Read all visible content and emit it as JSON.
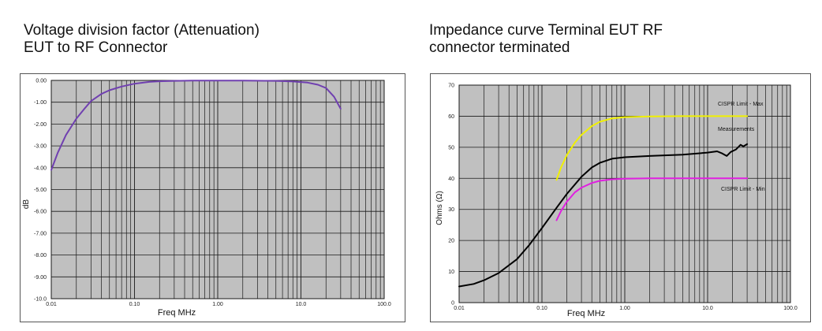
{
  "chart_data": [
    {
      "type": "line",
      "title": [
        "Voltage division factor (Attenuation)",
        "EUT to RF Connector"
      ],
      "xlabel": "Freq MHz",
      "ylabel": "dB",
      "x_scale": "log",
      "xlim": [
        0.01,
        100.0
      ],
      "ylim": [
        -10.0,
        0.0
      ],
      "x_ticks": [
        0.01,
        0.1,
        1.0,
        10.0,
        100.0
      ],
      "x_tick_labels": [
        "0.01",
        "0.10",
        "1.00",
        "10.0",
        "100.0"
      ],
      "y_ticks": [
        0,
        -1,
        -2,
        -3,
        -4,
        -5,
        -6,
        -7,
        -8,
        -9,
        -10
      ],
      "y_tick_labels": [
        "0.00",
        "-1.00",
        "-2.00",
        "-3.00",
        "-4.00",
        "-5.00",
        "-6.00",
        "-7.00",
        "-8.00",
        "-9.00",
        "-10.0"
      ],
      "grid": true,
      "background": "#c0c0c0",
      "series": [
        {
          "color": "#7040b0",
          "points": [
            [
              0.01,
              -4.1
            ],
            [
              0.012,
              -3.3
            ],
            [
              0.015,
              -2.5
            ],
            [
              0.02,
              -1.75
            ],
            [
              0.025,
              -1.3
            ],
            [
              0.03,
              -0.95
            ],
            [
              0.04,
              -0.62
            ],
            [
              0.05,
              -0.45
            ],
            [
              0.07,
              -0.28
            ],
            [
              0.1,
              -0.15
            ],
            [
              0.15,
              -0.07
            ],
            [
              0.2,
              -0.04
            ],
            [
              0.3,
              -0.02
            ],
            [
              0.5,
              -0.01
            ],
            [
              1.0,
              -0.01
            ],
            [
              2.0,
              -0.01
            ],
            [
              5.0,
              -0.02
            ],
            [
              8.0,
              -0.05
            ],
            [
              12.0,
              -0.1
            ],
            [
              16.0,
              -0.2
            ],
            [
              20.0,
              -0.35
            ],
            [
              25.0,
              -0.75
            ],
            [
              30.0,
              -1.3
            ]
          ]
        }
      ]
    },
    {
      "type": "line",
      "title": [
        "Impedance curve Terminal EUT RF",
        "connector terminated"
      ],
      "xlabel": "Freq MHz",
      "ylabel": "Ohms (Ω)",
      "x_scale": "log",
      "xlim": [
        0.01,
        100.0
      ],
      "ylim": [
        0,
        70
      ],
      "x_ticks": [
        0.01,
        0.1,
        1.0,
        10.0,
        100.0
      ],
      "x_tick_labels": [
        "0.01",
        "0.10",
        "1.00",
        "10.0",
        "100.0"
      ],
      "y_ticks": [
        0,
        10,
        20,
        30,
        40,
        50,
        60,
        70
      ],
      "y_tick_labels": [
        "0",
        "10",
        "20",
        "30",
        "40",
        "50",
        "60",
        "70"
      ],
      "grid": true,
      "background": "#c0c0c0",
      "series": [
        {
          "name": "CISPR Limit - Max",
          "color": "#f0f000",
          "points": [
            [
              0.15,
              39.5
            ],
            [
              0.17,
              43.5
            ],
            [
              0.2,
              47.5
            ],
            [
              0.25,
              51.5
            ],
            [
              0.3,
              54.0
            ],
            [
              0.4,
              56.8
            ],
            [
              0.5,
              58.2
            ],
            [
              0.7,
              59.3
            ],
            [
              1.0,
              59.7
            ],
            [
              2.0,
              59.9
            ],
            [
              5.0,
              60.0
            ],
            [
              10.0,
              60.0
            ],
            [
              30.0,
              60.0
            ]
          ]
        },
        {
          "name": "Measurements",
          "color": "#000000",
          "points": [
            [
              0.01,
              5.2
            ],
            [
              0.015,
              6.0
            ],
            [
              0.02,
              7.2
            ],
            [
              0.03,
              9.5
            ],
            [
              0.05,
              14.0
            ],
            [
              0.07,
              18.5
            ],
            [
              0.1,
              24.0
            ],
            [
              0.15,
              30.5
            ],
            [
              0.2,
              35.0
            ],
            [
              0.3,
              40.5
            ],
            [
              0.4,
              43.5
            ],
            [
              0.5,
              45.0
            ],
            [
              0.7,
              46.3
            ],
            [
              1.0,
              46.8
            ],
            [
              2.0,
              47.2
            ],
            [
              5.0,
              47.6
            ],
            [
              10.0,
              48.3
            ],
            [
              13.0,
              48.7
            ],
            [
              15.0,
              48.0
            ],
            [
              17.0,
              47.2
            ],
            [
              19.0,
              48.5
            ],
            [
              22.0,
              49.3
            ],
            [
              25.0,
              50.8
            ],
            [
              27.0,
              50.3
            ],
            [
              30.0,
              51.0
            ]
          ]
        },
        {
          "name": "CISPR Limit - Min",
          "color": "#e020e0",
          "points": [
            [
              0.15,
              26.5
            ],
            [
              0.17,
              29.5
            ],
            [
              0.2,
              32.5
            ],
            [
              0.25,
              35.5
            ],
            [
              0.3,
              37.0
            ],
            [
              0.4,
              38.5
            ],
            [
              0.5,
              39.2
            ],
            [
              0.7,
              39.7
            ],
            [
              1.0,
              39.9
            ],
            [
              2.0,
              40.0
            ],
            [
              5.0,
              40.0
            ],
            [
              10.0,
              40.0
            ],
            [
              30.0,
              40.0
            ]
          ]
        }
      ]
    }
  ]
}
